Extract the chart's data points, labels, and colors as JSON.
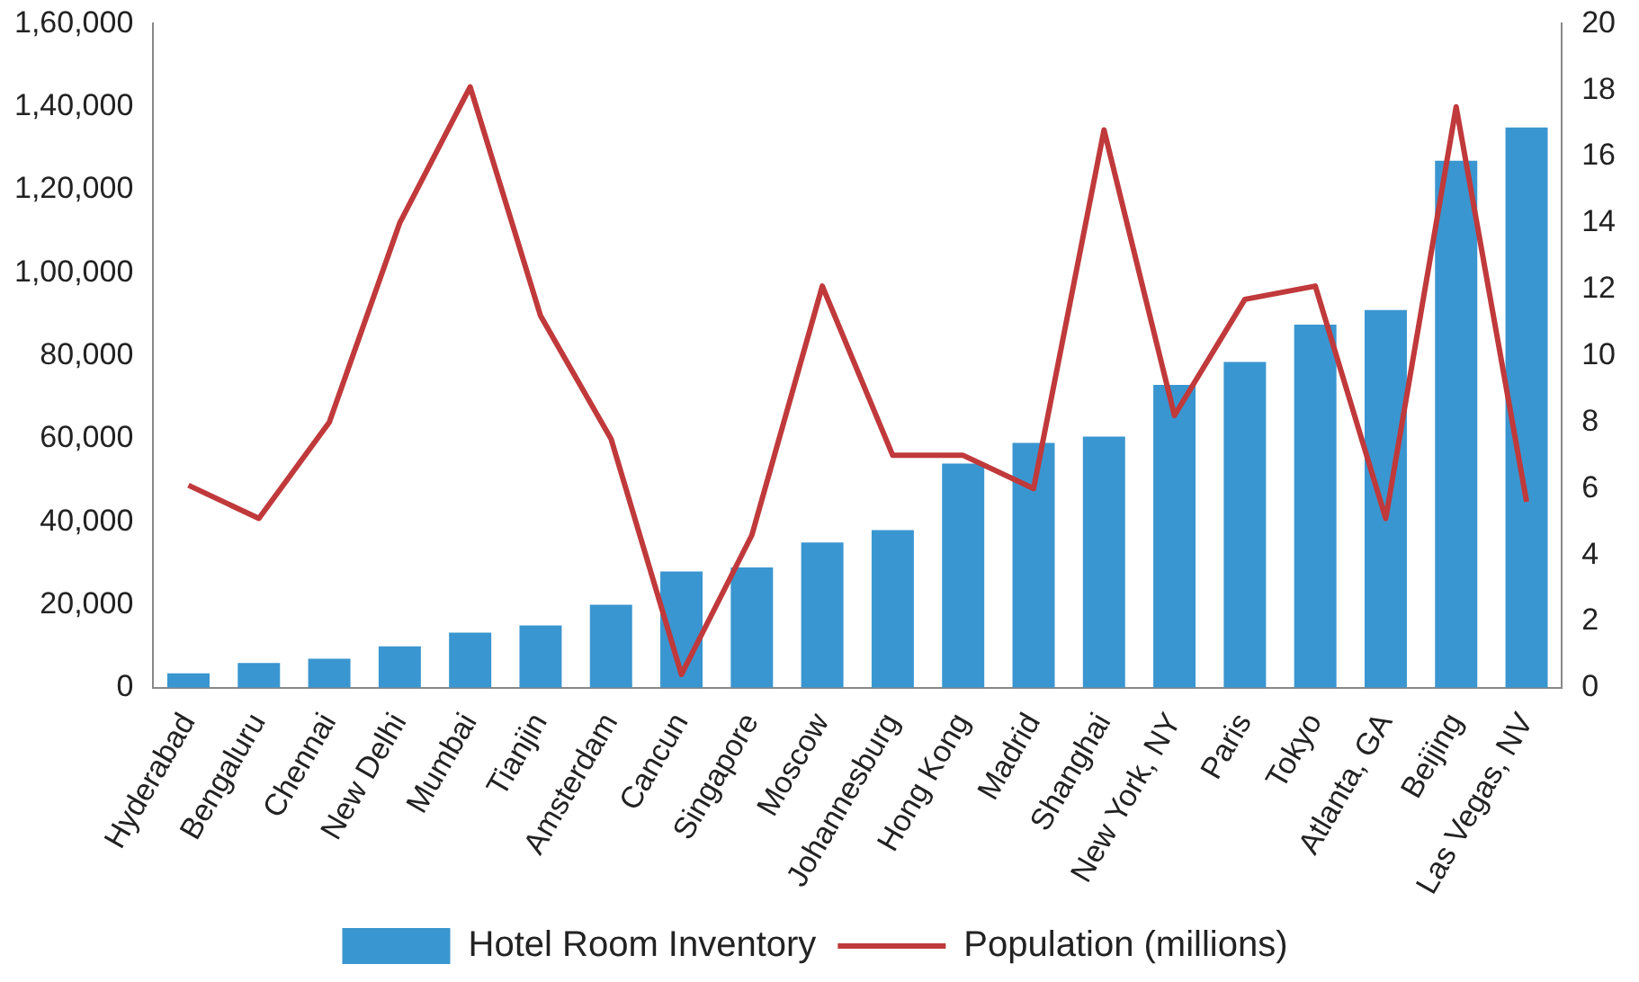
{
  "chart_data": {
    "type": "bar",
    "categories": [
      "Hyderabad",
      "Bengaluru",
      "Chennai",
      "New Delhi",
      "Mumbai",
      "Tianjin",
      "Amsterdam",
      "Cancun",
      "Singapore",
      "Moscow",
      "Johannesburg",
      "Hong Kong",
      "Madrid",
      "Shanghai",
      "New York, NY",
      "Paris",
      "Tokyo",
      "Atlanta, GA",
      "Beijing",
      "Las Vegas, NV"
    ],
    "series": [
      {
        "name": "Hotel Room Inventory",
        "color": "#3a96d0",
        "values": [
          3500,
          6000,
          7000,
          10000,
          13300,
          15000,
          20000,
          28000,
          29000,
          35000,
          38000,
          54000,
          59000,
          60500,
          73000,
          78500,
          87500,
          91000,
          127000,
          135000
        ]
      },
      {
        "name": "Population (millions)",
        "type": "line",
        "axis": "y2",
        "color": "#c0393b",
        "values": [
          6.1,
          5.1,
          8.0,
          14.0,
          18.1,
          11.2,
          7.5,
          0.4,
          4.6,
          12.1,
          7.0,
          7.0,
          6.0,
          16.8,
          8.2,
          11.7,
          12.1,
          5.1,
          17.5,
          5.6
        ]
      }
    ],
    "ylim": [
      0,
      160000
    ],
    "yticks": [
      0,
      {
        "value": 20000,
        "label": "20,000"
      },
      {
        "value": 40000,
        "label": "40,000"
      },
      {
        "value": 60000,
        "label": "60,000"
      },
      {
        "value": 80000,
        "label": "80,000"
      },
      {
        "value": 100000,
        "label": "1,00,000"
      },
      {
        "value": 120000,
        "label": "1,20,000"
      },
      {
        "value": 140000,
        "label": "1,40,000"
      },
      {
        "value": 160000,
        "label": "1,60,000"
      }
    ],
    "y2lim": [
      0,
      20
    ],
    "y2ticks": [
      0,
      2,
      4,
      6,
      8,
      10,
      12,
      14,
      16,
      18,
      20
    ],
    "grid": false,
    "legend": "bottom"
  }
}
